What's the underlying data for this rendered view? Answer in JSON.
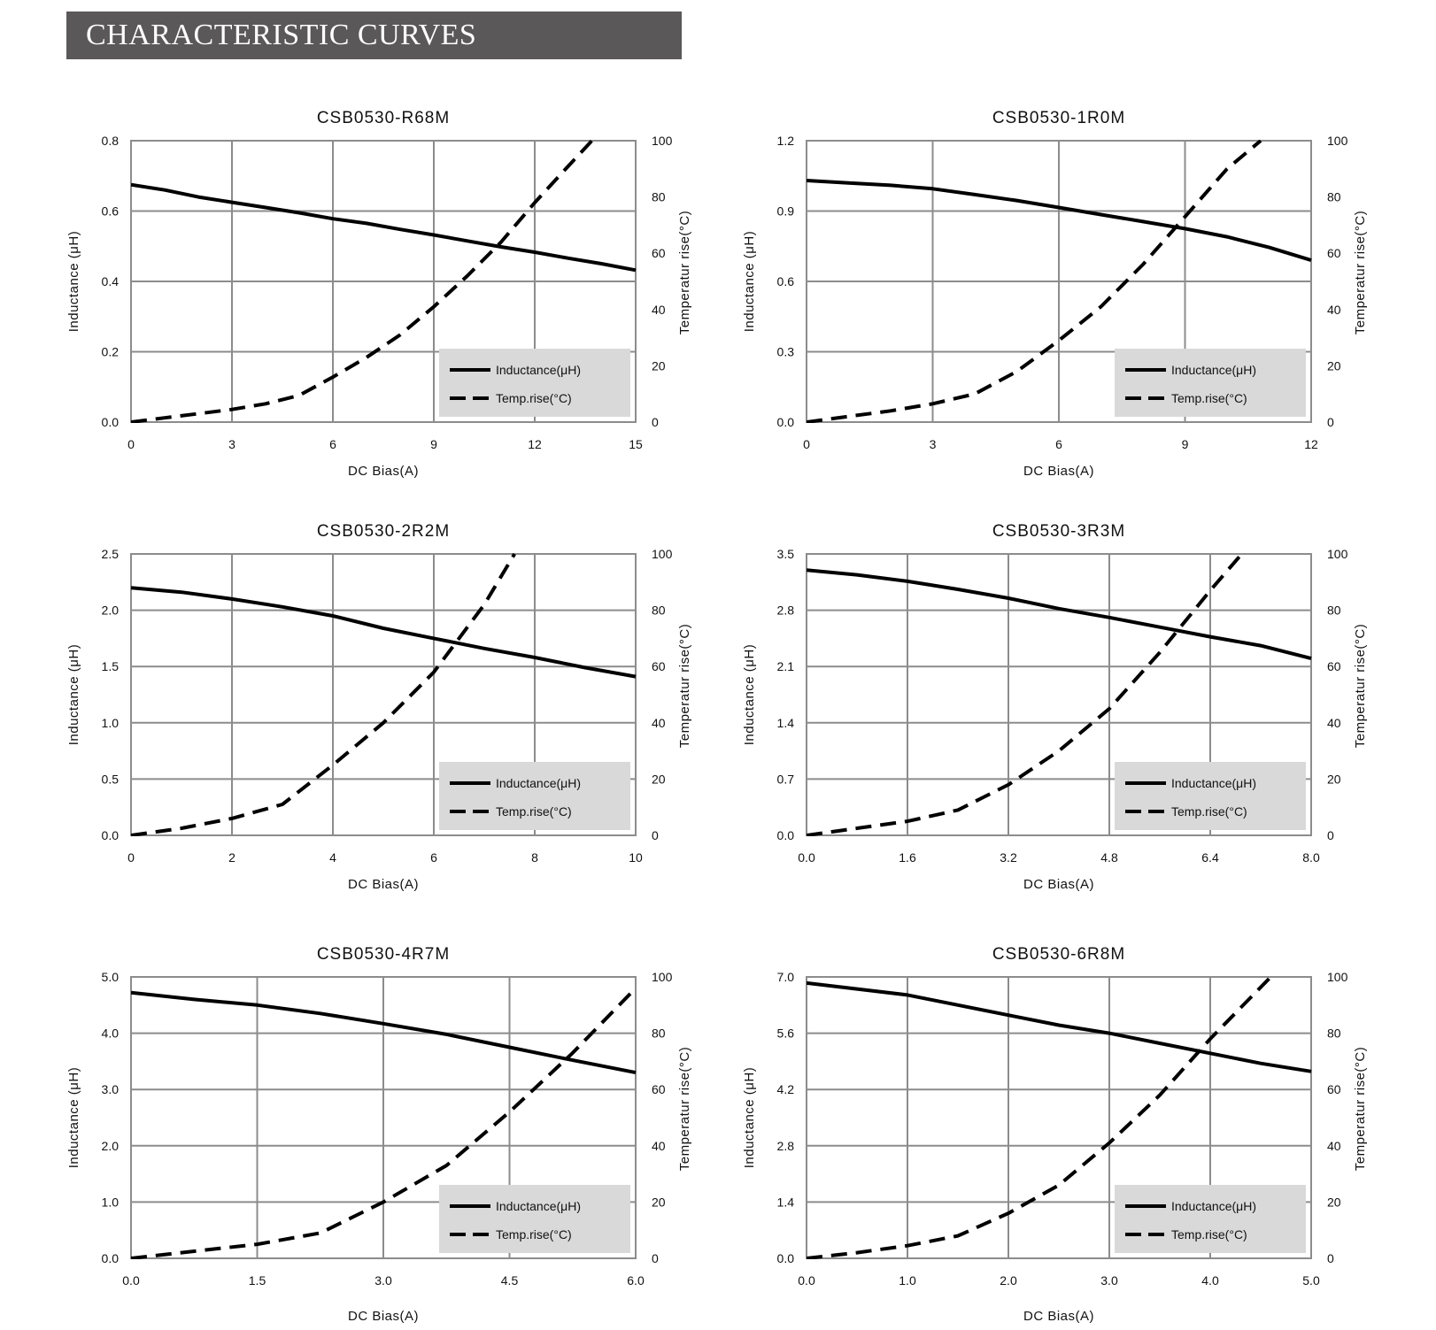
{
  "header": {
    "title": "CHARACTERISTIC CURVES",
    "bar_color": "#5a5859"
  },
  "legend": {
    "inductance": "Inductance(μH)",
    "temp": "Temp.rise(°C)",
    "background": "#d9d9d9"
  },
  "axis_labels": {
    "x": "DC Bias(A)",
    "y_left": "Inductance (μH)",
    "y_right": "Temperatur rise(°C)"
  },
  "chart_data": [
    {
      "type": "line",
      "title": "CSB0530-R68M",
      "xlabel": "DC Bias(A)",
      "ylabel": "Inductance (μH)",
      "y2label": "Temperatur rise(°C)",
      "xlim": [
        0,
        15
      ],
      "ylim": [
        0,
        0.8
      ],
      "y2lim": [
        0,
        100
      ],
      "xticks": [
        "0",
        "3",
        "6",
        "9",
        "12",
        "15"
      ],
      "yticks": [
        "0.0",
        "0.2",
        "0.4",
        "0.6",
        "0.8"
      ],
      "y2ticks": [
        "0",
        "20",
        "40",
        "60",
        "80",
        "100"
      ],
      "grid": true,
      "legend_position": "bottom-right",
      "series": [
        {
          "name": "Inductance(μH)",
          "axis": "left",
          "style": "solid",
          "x": [
            0,
            1,
            2,
            3,
            4,
            5,
            6,
            7,
            8,
            9,
            10,
            11,
            12,
            13,
            14,
            15
          ],
          "y": [
            0.675,
            0.66,
            0.64,
            0.625,
            0.61,
            0.595,
            0.578,
            0.565,
            0.548,
            0.532,
            0.515,
            0.498,
            0.483,
            0.466,
            0.45,
            0.432
          ]
        },
        {
          "name": "Temp.rise(°C)",
          "axis": "right",
          "style": "dashed",
          "x": [
            0,
            1,
            2,
            3,
            4,
            5,
            6,
            7,
            8,
            9,
            10,
            11,
            12,
            13,
            13.7
          ],
          "y": [
            0,
            1.5,
            3,
            4.5,
            6.5,
            9.5,
            16,
            23,
            31,
            41,
            52,
            64,
            78,
            91,
            100
          ]
        }
      ]
    },
    {
      "type": "line",
      "title": "CSB0530-1R0M",
      "xlabel": "DC Bias(A)",
      "ylabel": "Inductance (μH)",
      "y2label": "Temperatur rise(°C)",
      "xlim": [
        0,
        12
      ],
      "ylim": [
        0,
        1.2
      ],
      "y2lim": [
        0,
        100
      ],
      "xticks": [
        "0",
        "3",
        "6",
        "9",
        "12"
      ],
      "yticks": [
        "0.0",
        "0.3",
        "0.6",
        "0.9",
        "1.2"
      ],
      "y2ticks": [
        "0",
        "20",
        "40",
        "60",
        "80",
        "100"
      ],
      "grid": true,
      "legend_position": "bottom-right",
      "series": [
        {
          "name": "Inductance(μH)",
          "axis": "left",
          "style": "solid",
          "x": [
            0,
            1,
            2,
            3,
            4,
            5,
            6,
            7,
            8,
            9,
            10,
            11,
            12
          ],
          "y": [
            1.03,
            1.02,
            1.01,
            0.995,
            0.97,
            0.945,
            0.915,
            0.885,
            0.855,
            0.825,
            0.79,
            0.745,
            0.69
          ]
        },
        {
          "name": "Temp.rise(°C)",
          "axis": "right",
          "style": "dashed",
          "x": [
            0,
            1,
            2,
            3,
            4,
            5,
            6,
            7,
            8,
            9,
            10,
            10.8
          ],
          "y": [
            0,
            2,
            4,
            6.5,
            10,
            18,
            29,
            41,
            56,
            73,
            90,
            100
          ]
        }
      ]
    },
    {
      "type": "line",
      "title": "CSB0530-2R2M",
      "xlabel": "DC Bias(A)",
      "ylabel": "Inductance (μH)",
      "y2label": "Temperatur rise(°C)",
      "xlim": [
        0,
        10
      ],
      "ylim": [
        0,
        2.5
      ],
      "y2lim": [
        0,
        100
      ],
      "xticks": [
        "0",
        "2",
        "4",
        "6",
        "8",
        "10"
      ],
      "yticks": [
        "0.0",
        "0.5",
        "1.0",
        "1.5",
        "2.0",
        "2.5"
      ],
      "y2ticks": [
        "0",
        "20",
        "40",
        "60",
        "80",
        "100"
      ],
      "grid": true,
      "legend_position": "bottom-right",
      "series": [
        {
          "name": "Inductance(μH)",
          "axis": "left",
          "style": "solid",
          "x": [
            0,
            1,
            2,
            3,
            4,
            5,
            6,
            7,
            8,
            9,
            10
          ],
          "y": [
            2.2,
            2.16,
            2.1,
            2.03,
            1.95,
            1.84,
            1.75,
            1.66,
            1.58,
            1.49,
            1.41
          ]
        },
        {
          "name": "Temp.rise(°C)",
          "axis": "right",
          "style": "dashed",
          "x": [
            0,
            1,
            2,
            3,
            4,
            5,
            6,
            7,
            7.6
          ],
          "y": [
            0,
            2.5,
            6,
            11,
            25,
            40,
            58,
            82,
            100
          ]
        }
      ]
    },
    {
      "type": "line",
      "title": "CSB0530-3R3M",
      "xlabel": "DC Bias(A)",
      "ylabel": "Inductance (μH)",
      "y2label": "Temperatur rise(°C)",
      "xlim": [
        0,
        8
      ],
      "ylim": [
        0,
        3.5
      ],
      "y2lim": [
        0,
        100
      ],
      "xticks": [
        "0.0",
        "1.6",
        "3.2",
        "4.8",
        "6.4",
        "8.0"
      ],
      "yticks": [
        "0.0",
        "0.7",
        "1.4",
        "2.1",
        "2.8",
        "3.5"
      ],
      "y2ticks": [
        "0",
        "20",
        "40",
        "60",
        "80",
        "100"
      ],
      "grid": true,
      "legend_position": "bottom-right",
      "series": [
        {
          "name": "Inductance(μH)",
          "axis": "left",
          "style": "solid",
          "x": [
            0,
            0.8,
            1.6,
            2.4,
            3.2,
            4.0,
            4.8,
            5.6,
            6.4,
            7.2,
            8.0
          ],
          "y": [
            3.3,
            3.24,
            3.16,
            3.06,
            2.95,
            2.82,
            2.71,
            2.59,
            2.47,
            2.36,
            2.2
          ]
        },
        {
          "name": "Temp.rise(°C)",
          "axis": "right",
          "style": "dashed",
          "x": [
            0,
            0.8,
            1.6,
            2.4,
            3.2,
            4.0,
            4.8,
            5.6,
            6.4,
            6.9
          ],
          "y": [
            0,
            2.5,
            5,
            9,
            18,
            30,
            45,
            65,
            87,
            100
          ]
        }
      ]
    },
    {
      "type": "line",
      "title": "CSB0530-4R7M",
      "xlabel": "DC Bias(A)",
      "ylabel": "Inductance (μH)",
      "y2label": "Temperatur rise(°C)",
      "xlim": [
        0,
        6
      ],
      "ylim": [
        0,
        5
      ],
      "y2lim": [
        0,
        100
      ],
      "xticks": [
        "0.0",
        "1.5",
        "3.0",
        "4.5",
        "6.0"
      ],
      "yticks": [
        "0.0",
        "1.0",
        "2.0",
        "3.0",
        "4.0",
        "5.0"
      ],
      "y2ticks": [
        "0",
        "20",
        "40",
        "60",
        "80",
        "100"
      ],
      "grid": true,
      "legend_position": "bottom-right",
      "series": [
        {
          "name": "Inductance(μH)",
          "axis": "left",
          "style": "solid",
          "x": [
            0,
            0.75,
            1.5,
            2.25,
            3.0,
            3.75,
            4.5,
            5.25,
            6.0
          ],
          "y": [
            4.72,
            4.6,
            4.5,
            4.35,
            4.17,
            3.98,
            3.75,
            3.52,
            3.3
          ]
        },
        {
          "name": "Temp.rise(°C)",
          "axis": "right",
          "style": "dashed",
          "x": [
            0,
            0.75,
            1.5,
            2.25,
            3.0,
            3.75,
            4.5,
            5.25,
            6.0
          ],
          "y": [
            0,
            2.5,
            5,
            9,
            20,
            33,
            52,
            73,
            96
          ]
        }
      ]
    },
    {
      "type": "line",
      "title": "CSB0530-6R8M",
      "xlabel": "DC Bias(A)",
      "ylabel": "Inductance (μH)",
      "y2label": "Temperatur rise(°C)",
      "xlim": [
        0,
        5
      ],
      "ylim": [
        0,
        7
      ],
      "y2lim": [
        0,
        100
      ],
      "xticks": [
        "0.0",
        "1.0",
        "2.0",
        "3.0",
        "4.0",
        "5.0"
      ],
      "yticks": [
        "0.0",
        "1.4",
        "2.8",
        "4.2",
        "5.6",
        "7.0"
      ],
      "y2ticks": [
        "0",
        "20",
        "40",
        "60",
        "80",
        "100"
      ],
      "grid": true,
      "legend_position": "bottom-right",
      "series": [
        {
          "name": "Inductance(μH)",
          "axis": "left",
          "style": "solid",
          "x": [
            0,
            0.5,
            1,
            1.5,
            2,
            2.5,
            3,
            3.5,
            4,
            4.5,
            5
          ],
          "y": [
            6.85,
            6.7,
            6.55,
            6.3,
            6.05,
            5.8,
            5.6,
            5.35,
            5.1,
            4.85,
            4.65
          ]
        },
        {
          "name": "Temp.rise(°C)",
          "axis": "right",
          "style": "dashed",
          "x": [
            0,
            0.5,
            1,
            1.5,
            2,
            2.5,
            3,
            3.5,
            4,
            4.6
          ],
          "y": [
            0,
            2,
            4.5,
            8,
            16,
            26,
            41,
            58,
            78,
            100
          ]
        }
      ]
    }
  ]
}
